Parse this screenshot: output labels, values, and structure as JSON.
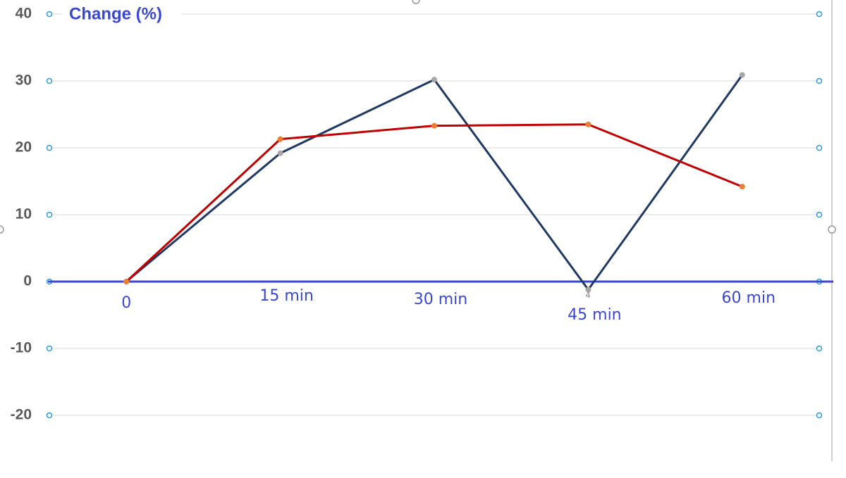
{
  "chart_data": {
    "type": "line",
    "title": "Change (%)",
    "categories": [
      "0",
      "15 min",
      "30 min",
      "45 min",
      "60 min"
    ],
    "series": [
      {
        "color": "#203864",
        "marker_color": "#a6a6a6",
        "values": [
          0,
          19.2,
          30.2,
          -1.2,
          30.9
        ]
      },
      {
        "color": "#c00000",
        "marker_color": "#ed7d31",
        "values": [
          0,
          21.3,
          23.3,
          23.5,
          14.2
        ]
      }
    ],
    "ylim": [
      -20,
      40
    ],
    "yticks": [
      -20,
      -10,
      0,
      10,
      20,
      30,
      40
    ],
    "grid": true,
    "axis_color": "#3a47d4",
    "annotation": "4"
  }
}
